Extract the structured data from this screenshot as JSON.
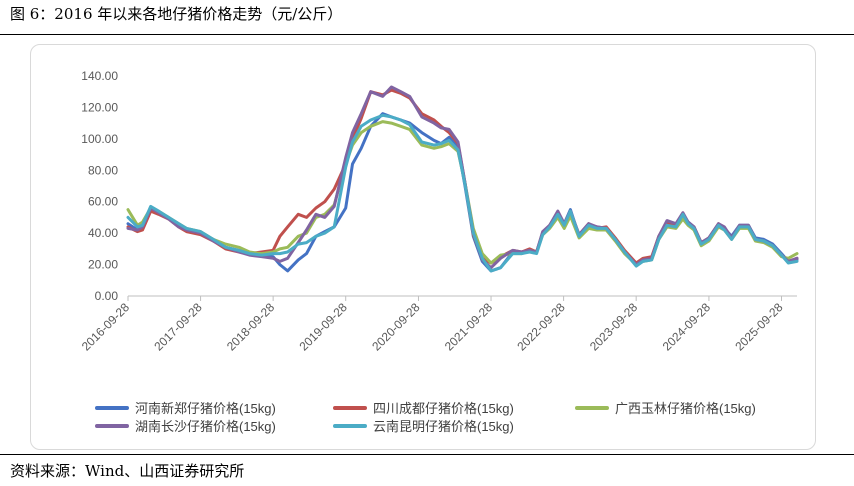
{
  "figure_title": "图 6：2016 年以来各地仔猪价格走势（元/公斤）",
  "source_note": "资料来源：Wind、山西证券研究所",
  "chart_data": {
    "type": "line",
    "title": "",
    "xlabel": "",
    "ylabel": "",
    "ylim": [
      0,
      140
    ],
    "yticks": [
      0,
      20,
      40,
      60,
      80,
      100,
      120,
      140
    ],
    "ytick_labels": [
      "0.00",
      "20.00",
      "40.00",
      "60.00",
      "80.00",
      "100.00",
      "120.00",
      "140.00"
    ],
    "xlim": [
      "2016-09-28",
      "2025-12-15"
    ],
    "xticks": [
      "2016-09-28",
      "2017-09-28",
      "2018-09-28",
      "2019-09-28",
      "2020-09-28",
      "2021-09-28",
      "2022-09-28",
      "2023-09-28",
      "2024-09-28",
      "2025-09-28"
    ],
    "grid": false,
    "legend_position": "bottom",
    "series": [
      {
        "name": "河南新郑仔猪价格(15kg)",
        "color": "#4472C4",
        "x": [
          "2016-09-28",
          "2016-11-15",
          "2016-12-10",
          "2017-01-20",
          "2017-03-01",
          "2017-04-20",
          "2017-06-10",
          "2017-07-20",
          "2017-09-28",
          "2017-12-01",
          "2018-02-01",
          "2018-04-10",
          "2018-06-01",
          "2018-08-01",
          "2018-09-28",
          "2018-11-01",
          "2018-12-10",
          "2019-02-01",
          "2019-03-15",
          "2019-05-01",
          "2019-06-15",
          "2019-08-01",
          "2019-09-28",
          "2019-11-01",
          "2019-12-15",
          "2020-02-01",
          "2020-04-01",
          "2020-05-15",
          "2020-07-01",
          "2020-08-15",
          "2020-10-15",
          "2020-12-15",
          "2021-01-20",
          "2021-03-01",
          "2021-04-15",
          "2021-05-20",
          "2021-07-01",
          "2021-08-15",
          "2021-09-28",
          "2021-11-15",
          "2022-01-15",
          "2022-03-01",
          "2022-04-10",
          "2022-05-15",
          "2022-06-15",
          "2022-07-20",
          "2022-08-30",
          "2022-10-01",
          "2022-11-01",
          "2022-12-15",
          "2023-02-01",
          "2023-03-15",
          "2023-05-01",
          "2023-06-15",
          "2023-08-01",
          "2023-09-28",
          "2023-11-01",
          "2023-12-15",
          "2024-01-20",
          "2024-03-01",
          "2024-04-15",
          "2024-05-20",
          "2024-06-15",
          "2024-07-15",
          "2024-08-20",
          "2024-09-28",
          "2024-11-15",
          "2024-12-15",
          "2025-01-20",
          "2025-03-01",
          "2025-04-15",
          "2025-05-20",
          "2025-07-01",
          "2025-08-15",
          "2025-09-28",
          "2025-11-01",
          "2025-12-15"
        ],
        "y": [
          46,
          42,
          43,
          55,
          53,
          50,
          45,
          42,
          40,
          36,
          31,
          29,
          27,
          26,
          25,
          20,
          16,
          23,
          27,
          38,
          41,
          44,
          56,
          84,
          94,
          108,
          116,
          114,
          112,
          110,
          104,
          99,
          97,
          101,
          95,
          70,
          38,
          22,
          16,
          18,
          28,
          28,
          29,
          28,
          40,
          44,
          53,
          46,
          55,
          38,
          45,
          44,
          43,
          36,
          28,
          20,
          23,
          24,
          37,
          46,
          45,
          52,
          47,
          44,
          33,
          36,
          45,
          43,
          38,
          45,
          45,
          37,
          36,
          33,
          27,
          22,
          23
        ]
      },
      {
        "name": "四川成都仔猪价格(15kg)",
        "color": "#C0504D",
        "x": [
          "2016-09-28",
          "2016-11-15",
          "2016-12-10",
          "2017-01-20",
          "2017-03-01",
          "2017-04-20",
          "2017-06-10",
          "2017-07-20",
          "2017-09-28",
          "2017-12-01",
          "2018-02-01",
          "2018-04-10",
          "2018-06-01",
          "2018-08-01",
          "2018-09-28",
          "2018-11-01",
          "2018-12-10",
          "2019-02-01",
          "2019-03-15",
          "2019-05-01",
          "2019-06-15",
          "2019-08-01",
          "2019-09-28",
          "2019-11-01",
          "2019-12-15",
          "2020-02-01",
          "2020-04-01",
          "2020-05-15",
          "2020-07-01",
          "2020-08-15",
          "2020-10-15",
          "2020-12-15",
          "2021-01-20",
          "2021-03-01",
          "2021-04-15",
          "2021-05-20",
          "2021-07-01",
          "2021-08-15",
          "2021-09-28",
          "2021-11-15",
          "2022-01-15",
          "2022-03-01",
          "2022-04-10",
          "2022-05-15",
          "2022-06-15",
          "2022-07-20",
          "2022-08-30",
          "2022-10-01",
          "2022-11-01",
          "2022-12-15",
          "2023-02-01",
          "2023-03-15",
          "2023-05-01",
          "2023-06-15",
          "2023-08-01",
          "2023-09-28",
          "2023-11-01",
          "2023-12-15",
          "2024-01-20",
          "2024-03-01",
          "2024-04-15",
          "2024-05-20",
          "2024-06-15",
          "2024-07-15",
          "2024-08-20",
          "2024-09-28",
          "2024-11-15",
          "2024-12-15",
          "2025-01-20",
          "2025-03-01",
          "2025-04-15",
          "2025-05-20",
          "2025-07-01",
          "2025-08-15",
          "2025-09-28",
          "2025-11-01",
          "2025-12-15"
        ],
        "y": [
          44,
          41,
          42,
          54,
          52,
          49,
          44,
          41,
          39,
          35,
          30,
          28,
          27,
          28,
          29,
          38,
          44,
          52,
          50,
          56,
          60,
          68,
          84,
          100,
          113,
          130,
          128,
          131,
          129,
          126,
          116,
          112,
          108,
          104,
          97,
          72,
          39,
          24,
          21,
          25,
          29,
          28,
          30,
          28,
          40,
          45,
          53,
          45,
          53,
          39,
          46,
          43,
          44,
          37,
          29,
          21,
          24,
          25,
          38,
          47,
          45,
          51,
          46,
          44,
          34,
          37,
          46,
          43,
          37,
          44,
          44,
          36,
          35,
          32,
          26,
          22,
          24
        ]
      },
      {
        "name": "广西玉林仔猪价格(15kg)",
        "color": "#9BBB59",
        "x": [
          "2016-09-28",
          "2016-11-15",
          "2016-12-10",
          "2017-01-20",
          "2017-03-01",
          "2017-04-20",
          "2017-06-10",
          "2017-07-20",
          "2017-09-28",
          "2017-12-01",
          "2018-02-01",
          "2018-04-10",
          "2018-06-01",
          "2018-08-01",
          "2018-09-28",
          "2018-11-01",
          "2018-12-10",
          "2019-02-01",
          "2019-03-15",
          "2019-05-01",
          "2019-06-15",
          "2019-08-01",
          "2019-09-28",
          "2019-11-01",
          "2019-12-15",
          "2020-02-01",
          "2020-04-01",
          "2020-05-15",
          "2020-07-01",
          "2020-08-15",
          "2020-10-15",
          "2020-12-15",
          "2021-01-20",
          "2021-03-01",
          "2021-04-15",
          "2021-05-20",
          "2021-07-01",
          "2021-08-15",
          "2021-09-28",
          "2021-11-15",
          "2022-01-15",
          "2022-03-01",
          "2022-04-10",
          "2022-05-15",
          "2022-06-15",
          "2022-07-20",
          "2022-08-30",
          "2022-10-01",
          "2022-11-01",
          "2022-12-15",
          "2023-02-01",
          "2023-03-15",
          "2023-05-01",
          "2023-06-15",
          "2023-08-01",
          "2023-09-28",
          "2023-11-01",
          "2023-12-15",
          "2024-01-20",
          "2024-03-01",
          "2024-04-15",
          "2024-05-20",
          "2024-06-15",
          "2024-07-15",
          "2024-08-20",
          "2024-09-28",
          "2024-11-15",
          "2024-12-15",
          "2025-01-20",
          "2025-03-01",
          "2025-04-15",
          "2025-05-20",
          "2025-07-01",
          "2025-08-15",
          "2025-09-28",
          "2025-11-01",
          "2025-12-15"
        ],
        "y": [
          55,
          45,
          47,
          56,
          54,
          50,
          46,
          43,
          41,
          36,
          33,
          31,
          28,
          27,
          28,
          30,
          31,
          38,
          40,
          50,
          52,
          58,
          84,
          96,
          104,
          108,
          111,
          110,
          108,
          106,
          96,
          94,
          95,
          97,
          92,
          72,
          43,
          27,
          21,
          26,
          27,
          27,
          29,
          28,
          39,
          43,
          50,
          43,
          51,
          37,
          43,
          42,
          42,
          35,
          27,
          20,
          22,
          23,
          36,
          44,
          43,
          49,
          45,
          42,
          32,
          35,
          44,
          42,
          36,
          43,
          43,
          35,
          34,
          31,
          25,
          24,
          27
        ]
      },
      {
        "name": "湖南长沙仔猪价格(15kg)",
        "color": "#8064A2",
        "x": [
          "2016-09-28",
          "2016-11-15",
          "2016-12-10",
          "2017-01-20",
          "2017-03-01",
          "2017-04-20",
          "2017-06-10",
          "2017-07-20",
          "2017-09-28",
          "2017-12-01",
          "2018-02-01",
          "2018-04-10",
          "2018-06-01",
          "2018-08-01",
          "2018-09-28",
          "2018-11-01",
          "2018-12-10",
          "2019-02-01",
          "2019-03-15",
          "2019-05-01",
          "2019-06-15",
          "2019-08-01",
          "2019-09-28",
          "2019-11-01",
          "2019-12-15",
          "2020-02-01",
          "2020-04-01",
          "2020-05-15",
          "2020-07-01",
          "2020-08-15",
          "2020-10-15",
          "2020-12-15",
          "2021-01-20",
          "2021-03-01",
          "2021-04-15",
          "2021-05-20",
          "2021-07-01",
          "2021-08-15",
          "2021-09-28",
          "2021-11-15",
          "2022-01-15",
          "2022-03-01",
          "2022-04-10",
          "2022-05-15",
          "2022-06-15",
          "2022-07-20",
          "2022-08-30",
          "2022-10-01",
          "2022-11-01",
          "2022-12-15",
          "2023-02-01",
          "2023-03-15",
          "2023-05-01",
          "2023-06-15",
          "2023-08-01",
          "2023-09-28",
          "2023-11-01",
          "2023-12-15",
          "2024-01-20",
          "2024-03-01",
          "2024-04-15",
          "2024-05-20",
          "2024-06-15",
          "2024-07-15",
          "2024-08-20",
          "2024-09-28",
          "2024-11-15",
          "2024-12-15",
          "2025-01-20",
          "2025-03-01",
          "2025-04-15",
          "2025-05-20",
          "2025-07-01",
          "2025-08-15",
          "2025-09-28",
          "2025-11-01",
          "2025-12-15"
        ],
        "y": [
          43,
          42,
          44,
          56,
          53,
          49,
          44,
          42,
          40,
          35,
          31,
          28,
          26,
          25,
          24,
          22,
          24,
          34,
          42,
          52,
          50,
          57,
          88,
          104,
          116,
          130,
          127,
          133,
          130,
          127,
          114,
          110,
          107,
          106,
          98,
          72,
          40,
          23,
          18,
          24,
          29,
          28,
          29,
          28,
          41,
          45,
          54,
          46,
          54,
          39,
          46,
          44,
          43,
          36,
          28,
          20,
          23,
          24,
          38,
          48,
          46,
          53,
          47,
          44,
          34,
          37,
          46,
          44,
          37,
          45,
          45,
          36,
          35,
          32,
          26,
          22,
          24
        ]
      },
      {
        "name": "云南昆明仔猪价格(15kg)",
        "color": "#4BACC6",
        "x": [
          "2016-09-28",
          "2016-11-15",
          "2016-12-10",
          "2017-01-20",
          "2017-03-01",
          "2017-04-20",
          "2017-06-10",
          "2017-07-20",
          "2017-09-28",
          "2017-12-01",
          "2018-02-01",
          "2018-04-10",
          "2018-06-01",
          "2018-08-01",
          "2018-09-28",
          "2018-11-01",
          "2018-12-10",
          "2019-02-01",
          "2019-03-15",
          "2019-05-01",
          "2019-06-15",
          "2019-08-01",
          "2019-09-28",
          "2019-11-01",
          "2019-12-15",
          "2020-02-01",
          "2020-04-01",
          "2020-05-15",
          "2020-07-01",
          "2020-08-15",
          "2020-10-15",
          "2020-12-15",
          "2021-01-20",
          "2021-03-01",
          "2021-04-15",
          "2021-05-20",
          "2021-07-01",
          "2021-08-15",
          "2021-09-28",
          "2021-11-15",
          "2022-01-15",
          "2022-03-01",
          "2022-04-10",
          "2022-05-15",
          "2022-06-15",
          "2022-07-20",
          "2022-08-30",
          "2022-10-01",
          "2022-11-01",
          "2022-12-15",
          "2023-02-01",
          "2023-03-15",
          "2023-05-01",
          "2023-06-15",
          "2023-08-01",
          "2023-09-28",
          "2023-11-01",
          "2023-12-15",
          "2024-01-20",
          "2024-03-01",
          "2024-04-15",
          "2024-05-20",
          "2024-06-15",
          "2024-07-15",
          "2024-08-20",
          "2024-09-28",
          "2024-11-15",
          "2024-12-15",
          "2025-01-20",
          "2025-03-01",
          "2025-04-15",
          "2025-05-20",
          "2025-07-01",
          "2025-08-15",
          "2025-09-28",
          "2025-11-01",
          "2025-12-15"
        ],
        "y": [
          50,
          44,
          45,
          57,
          54,
          50,
          46,
          43,
          41,
          36,
          31,
          29,
          27,
          26,
          27,
          27,
          28,
          33,
          34,
          38,
          40,
          44,
          82,
          98,
          108,
          112,
          115,
          114,
          112,
          109,
          98,
          96,
          97,
          99,
          93,
          71,
          40,
          24,
          16,
          18,
          27,
          27,
          28,
          27,
          39,
          44,
          52,
          45,
          54,
          38,
          45,
          43,
          43,
          36,
          28,
          19,
          22,
          23,
          36,
          45,
          44,
          52,
          46,
          43,
          33,
          36,
          45,
          42,
          36,
          44,
          44,
          36,
          35,
          32,
          26,
          21,
          22
        ]
      }
    ]
  }
}
